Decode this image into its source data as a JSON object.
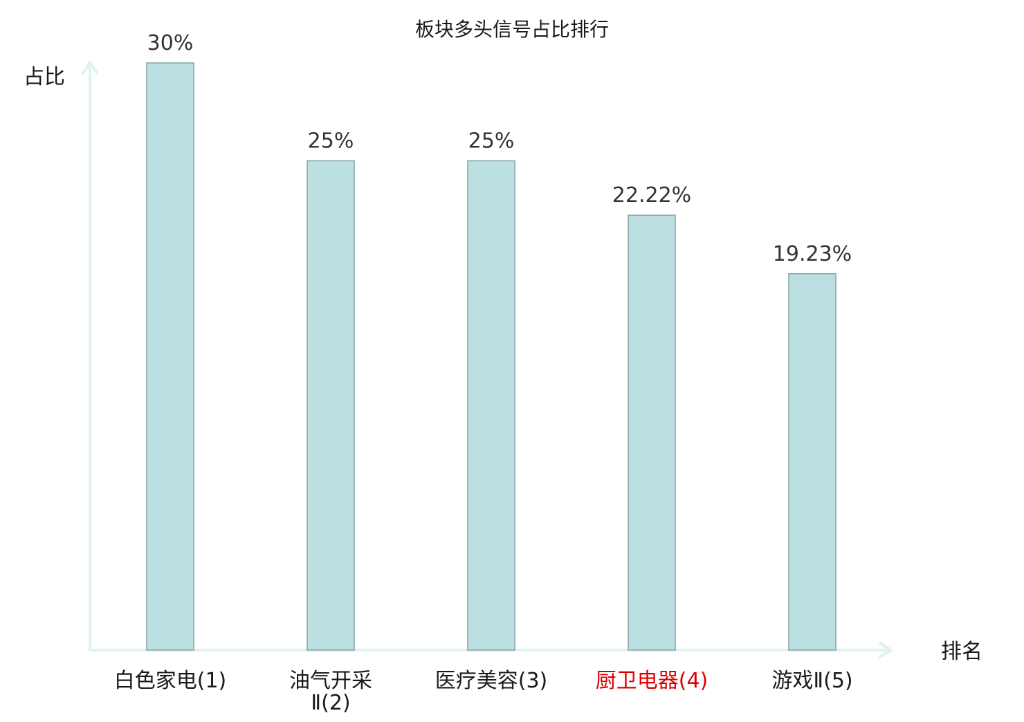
{
  "chart_data": {
    "type": "bar",
    "title": "板块多头信号占比排行",
    "ylabel": "占比",
    "xlabel": "排名",
    "categories": [
      "白色家电(1)",
      "油气开采Ⅱ(2)",
      "医疗美容(3)",
      "厨卫电器(4)",
      "游戏Ⅱ(5)"
    ],
    "category_lines": [
      [
        "白色家电(1)"
      ],
      [
        "油气开采",
        "Ⅱ(2)"
      ],
      [
        "医疗美容(3)"
      ],
      [
        "厨卫电器(4)"
      ],
      [
        "游戏Ⅱ(5)"
      ]
    ],
    "values": [
      30,
      25,
      25,
      22.22,
      19.23
    ],
    "value_labels": [
      "30%",
      "25%",
      "25%",
      "22.22%",
      "19.23%"
    ],
    "ylim": [
      0,
      30
    ],
    "grid": false,
    "highlight_index": 3,
    "colors": {
      "bar_fill": "#bce0e2",
      "bar_stroke": "#87a3a5",
      "axis": "#dff2f0",
      "text": "#1a1a1a",
      "highlight_text": "#e00000"
    }
  }
}
